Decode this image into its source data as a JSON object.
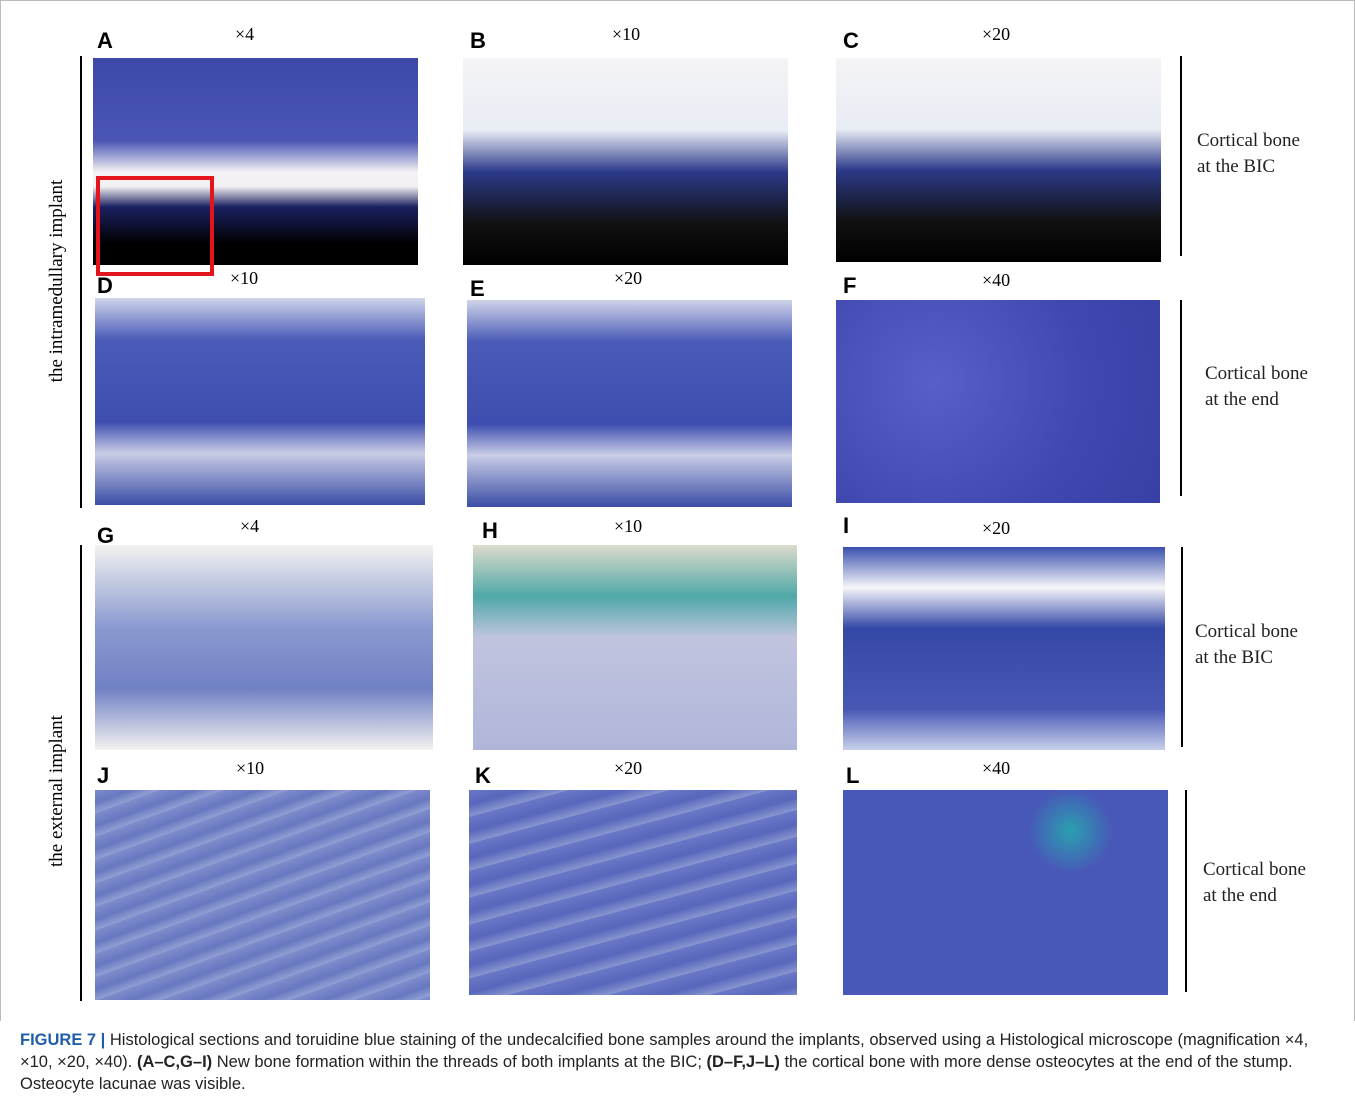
{
  "panels": [
    {
      "letter": "A",
      "magnification": "×4"
    },
    {
      "letter": "B",
      "magnification": "×10"
    },
    {
      "letter": "C",
      "magnification": "×20"
    },
    {
      "letter": "D",
      "magnification": "×10"
    },
    {
      "letter": "E",
      "magnification": "×20"
    },
    {
      "letter": "F",
      "magnification": "×40"
    },
    {
      "letter": "G",
      "magnification": "×4"
    },
    {
      "letter": "H",
      "magnification": "×10"
    },
    {
      "letter": "I",
      "magnification": "×20"
    },
    {
      "letter": "J",
      "magnification": "×10"
    },
    {
      "letter": "K",
      "magnification": "×20"
    },
    {
      "letter": "L",
      "magnification": "×40"
    }
  ],
  "row_groups": [
    "the intramedullary implant",
    "the external implant"
  ],
  "side_labels": [
    [
      "Cortical bone",
      "at the BIC"
    ],
    [
      "Cortical bone",
      "at the end"
    ],
    [
      "Cortical bone",
      "at the BIC"
    ],
    [
      "Cortical bone",
      "at the end"
    ]
  ],
  "caption": [
    "FIGURE 7 |",
    " Histological sections and toruidine blue staining of the undecalcified bone samples around the implants, observed using a Histological microscope (magnification ×4, ×10, ×20, ×40). ",
    "(A–C,G–I)",
    " New bone formation within the threads of both implants at the BIC; ",
    "(D–F,J–L)",
    " the cortical bone with more dense osteocytes at the end of the stump. Osteocyte lacunae was visible."
  ]
}
